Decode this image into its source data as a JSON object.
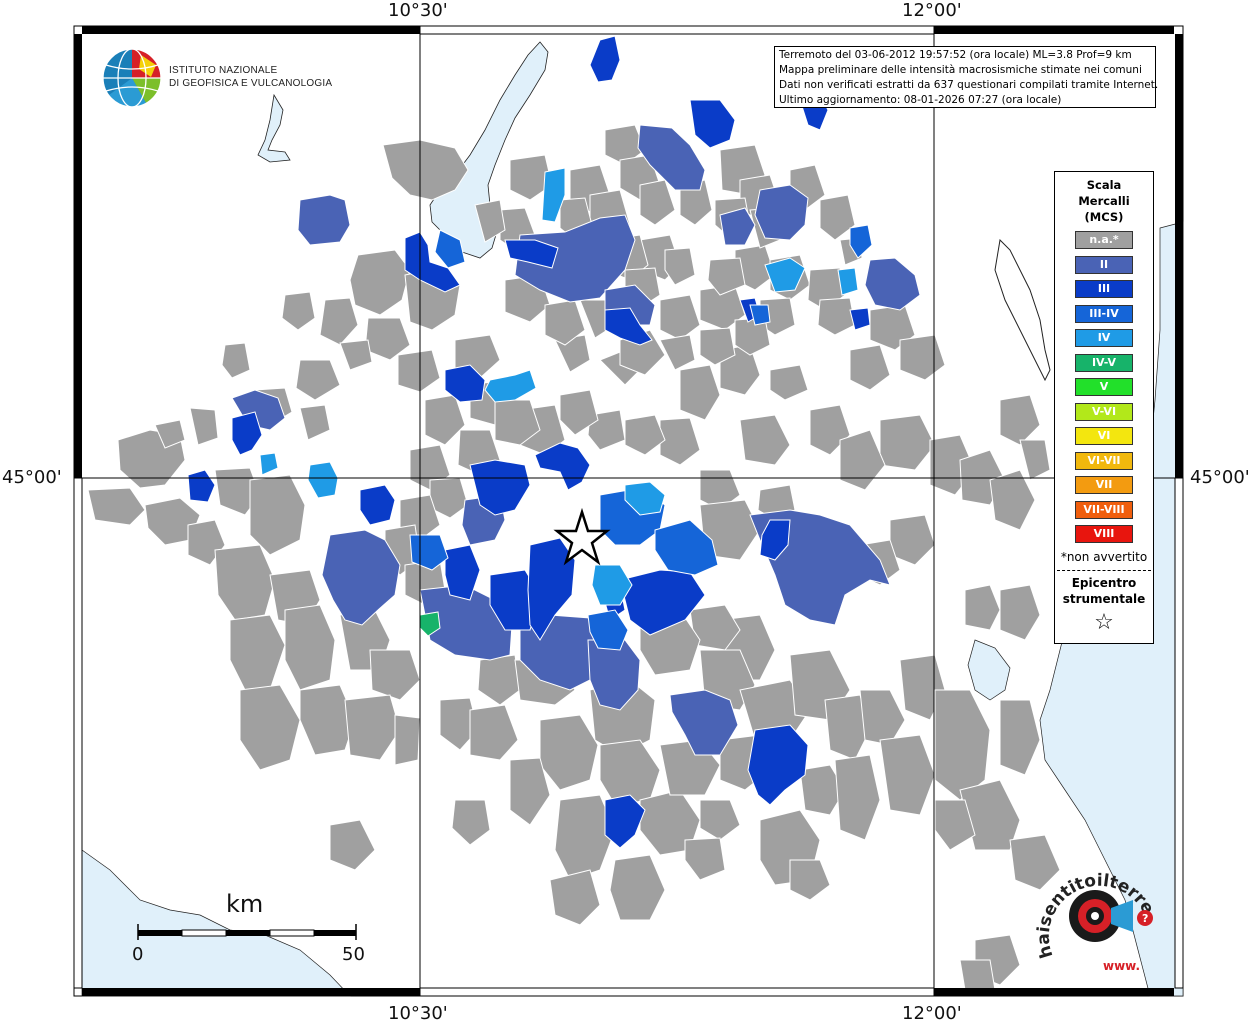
{
  "coords": {
    "top_left_lon": "10°30'",
    "top_right_lon": "12°00'",
    "bottom_left_lon": "10°30'",
    "bottom_right_lon": "12°00'",
    "left_lat": "45°00'",
    "right_lat": "45°00'"
  },
  "header_logo": {
    "line1": "ISTITUTO NAZIONALE",
    "line2": "DI GEOFISICA E VULCANOLOGIA"
  },
  "info": {
    "line1": "Terremoto del 03-06-2012 19:57:52 (ora locale) ML=3.8 Prof=9 km",
    "line2": "Mappa preliminare delle intensità macrosismiche stimate nei comuni",
    "line3": "Dati non verificati estratti da 637 questionari compilati tramite Internet.",
    "line4": "Ultimo aggiornamento: 08-01-2026 07:27 (ora locale)"
  },
  "legend": {
    "title1": "Scala",
    "title2": "Mercalli",
    "title3": "(MCS)",
    "items": [
      {
        "label": "n.a.*",
        "color": "#a0a0a0"
      },
      {
        "label": "II",
        "color": "#4a63b5"
      },
      {
        "label": "III",
        "color": "#0a3cc8"
      },
      {
        "label": "III-IV",
        "color": "#1565d8"
      },
      {
        "label": "IV",
        "color": "#1f9be6"
      },
      {
        "label": "IV-V",
        "color": "#17b36a"
      },
      {
        "label": "V",
        "color": "#22e02a"
      },
      {
        "label": "V-VI",
        "color": "#b2e81a"
      },
      {
        "label": "VI",
        "color": "#f3e60f"
      },
      {
        "label": "VI-VII",
        "color": "#f1b80d"
      },
      {
        "label": "VII",
        "color": "#f39b10"
      },
      {
        "label": "VII-VIII",
        "color": "#f05e0d"
      },
      {
        "label": "VIII",
        "color": "#e8150e"
      }
    ],
    "note": "*non avvertito",
    "epi1": "Epicentro",
    "epi2": "strumentale",
    "star": "☆"
  },
  "scalebar": {
    "unit": "km",
    "start": "0",
    "end": "50"
  },
  "site_logo": {
    "text": "haisentitoilterremoto.it",
    "url_prefix": "www."
  },
  "colors": {
    "sea": "#e0f0fa",
    "na": "#a0a0a0",
    "ii": "#4a63b5",
    "iii": "#0a3cc8",
    "iiiiv": "#1565d8",
    "iv": "#1f9be6",
    "ivv": "#17b36a"
  }
}
